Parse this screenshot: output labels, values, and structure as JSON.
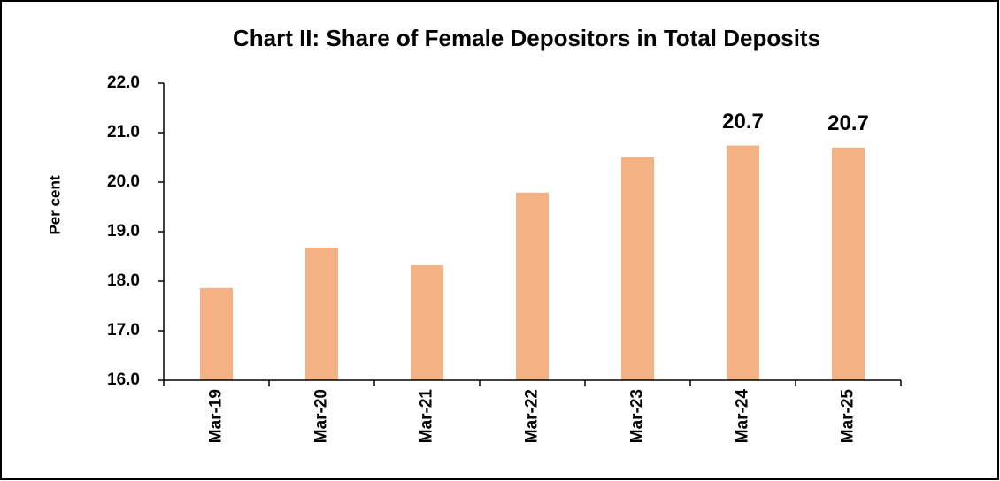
{
  "chart_data": {
    "type": "bar",
    "title": "Chart II: Share of Female Depositors in Total Deposits",
    "y_axis_label": "Per cent",
    "categories": [
      "Mar-19",
      "Mar-20",
      "Mar-21",
      "Mar-22",
      "Mar-23",
      "Mar-24",
      "Mar-25"
    ],
    "values": [
      17.86,
      18.68,
      18.32,
      19.79,
      20.5,
      20.74,
      20.7
    ],
    "value_labels": [
      null,
      null,
      null,
      null,
      null,
      "20.7",
      "20.7"
    ],
    "color": "#f4b183",
    "ylim": [
      16,
      22
    ],
    "yticks": [
      {
        "value": 16,
        "label": "16.0"
      },
      {
        "value": 17,
        "label": "17.0"
      },
      {
        "value": 18,
        "label": "18.0"
      },
      {
        "value": 19,
        "label": "19.0"
      },
      {
        "value": 20,
        "label": "20.0"
      },
      {
        "value": 21,
        "label": "21.0"
      },
      {
        "value": 22,
        "label": "22.0"
      }
    ],
    "grid": false
  }
}
